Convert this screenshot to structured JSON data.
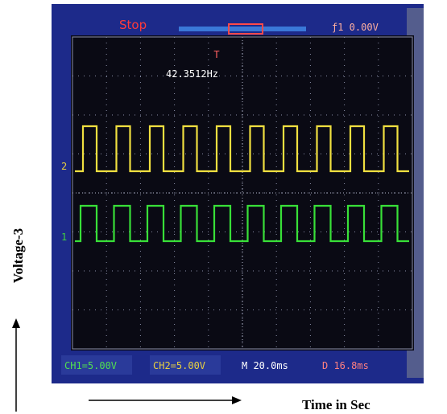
{
  "screen": {
    "status": "Stop",
    "trigger": "ƒ1 0.00V",
    "frequency": "42.3512Hz",
    "trigger_marker": "T",
    "channel_markers": [
      "2",
      "1"
    ],
    "footer": [
      "CH1=5.00V",
      "CH2=5.00V",
      "M 20.0ms",
      "D 16.8ms"
    ]
  },
  "axes": {
    "y_label": "Voltage-3",
    "x_label": "Time in Sec"
  }
}
